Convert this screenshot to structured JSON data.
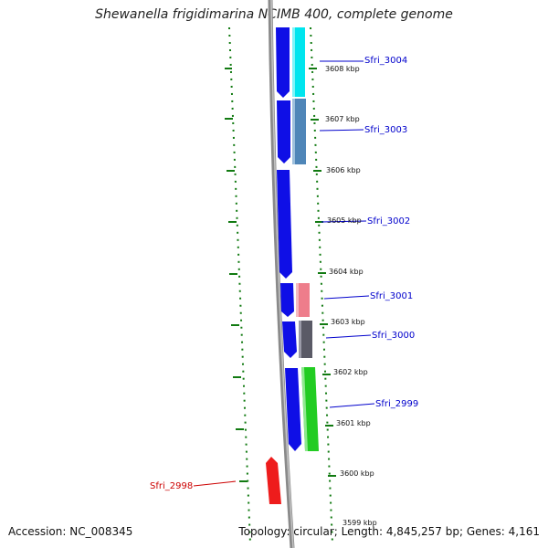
{
  "title": "Shewanella frigidimarina NCIMB 400, complete genome",
  "accession": "Accession: NC_008345",
  "topology": {
    "topology_text": "Topology: circular;",
    "length_text": "Length: 4,845,257 bp;",
    "genes_text": "Genes: 4,161"
  },
  "scale_labels": [
    "3608 kbp",
    "3607 kbp",
    "3606 kbp",
    "3605 kbp",
    "3604 kbp",
    "3603 kbp",
    "3602 kbp",
    "3601 kbp",
    "3600 kbp",
    "3599 kbp"
  ],
  "genes": [
    {
      "name": "Sfri_3004",
      "color": "#00e5ee",
      "strand": "+"
    },
    {
      "name": "Sfri_3003",
      "color": "#4f86b8",
      "strand": "+"
    },
    {
      "name": "Sfri_3002",
      "color": "#1010e0",
      "strand": "+"
    },
    {
      "name": "Sfri_3001",
      "color": "#ee7d8b",
      "strand": "+"
    },
    {
      "name": "Sfri_3000",
      "color": "#5a5a66",
      "strand": "+"
    },
    {
      "name": "Sfri_2999",
      "color": "#22cc22",
      "strand": "+"
    },
    {
      "name": "Sfri_2998",
      "color": "#ee1c1c",
      "strand": "-"
    }
  ],
  "colors": {
    "cds_blue": "#0f0fe6",
    "backbone": "#8a8a8a",
    "tick_green": "#117a11",
    "label_blue": "#0000cc",
    "label_red": "#cc0000"
  }
}
